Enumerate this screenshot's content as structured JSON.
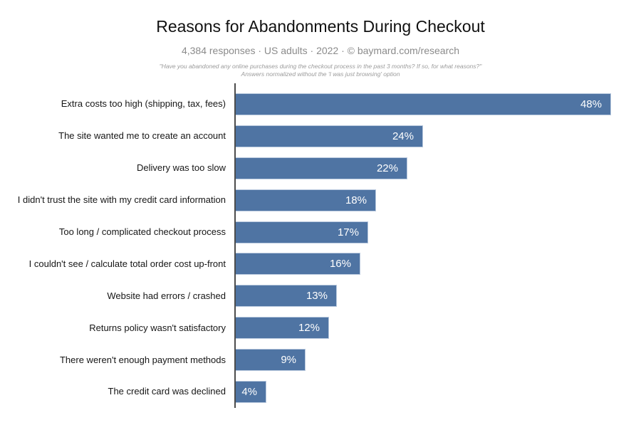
{
  "header": {
    "title": "Reasons for Abandonments During Checkout",
    "subtitle": "4,384 responses · US adults · 2022 · © baymard.com/research",
    "note_line1": "\"Have you abandoned any online purchases during the checkout process in the past 3 months? If so, for what reasons?\"",
    "note_line2": "Answers normalized without the 'I was just browsing' option"
  },
  "chart_data": {
    "type": "bar",
    "orientation": "horizontal",
    "title": "Reasons for Abandonments During Checkout",
    "categories": [
      "Extra costs too high (shipping, tax, fees)",
      "The site wanted me to create an account",
      "Delivery was too slow",
      "I didn't trust the site with my credit card information",
      "Too long / complicated checkout process",
      "I couldn't see / calculate total order cost up-front",
      "Website had errors / crashed",
      "Returns policy wasn't satisfactory",
      "There weren't enough payment methods",
      "The credit card was declined"
    ],
    "values": [
      48,
      24,
      22,
      18,
      17,
      16,
      13,
      12,
      9,
      4
    ],
    "value_suffix": "%",
    "value_labels": "inside-end",
    "xlim": [
      0,
      50
    ],
    "grid": false,
    "legend": false,
    "bar_color": "#4f74a3",
    "bar_border_color": "#b9c9de",
    "axis_color": "#4c4c4c",
    "value_label_color": "#ffffff"
  }
}
